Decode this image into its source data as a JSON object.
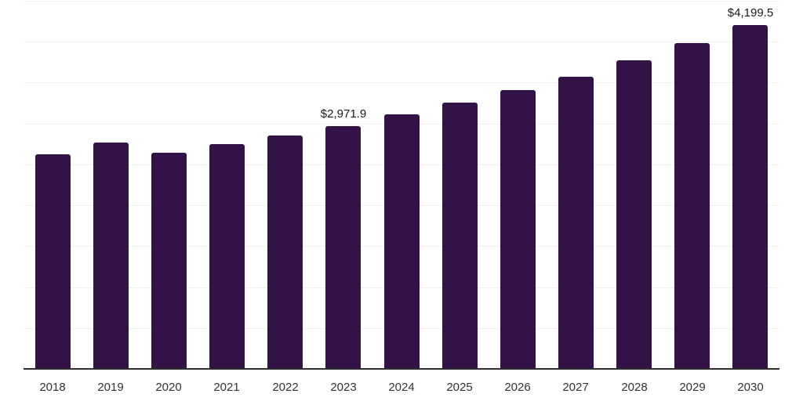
{
  "chart_data": {
    "type": "bar",
    "title": "",
    "categories": [
      "2018",
      "2019",
      "2020",
      "2021",
      "2022",
      "2023",
      "2024",
      "2025",
      "2026",
      "2027",
      "2028",
      "2029",
      "2030"
    ],
    "values": [
      2625,
      2770,
      2640,
      2745,
      2850,
      2971.9,
      3110,
      3255,
      3405,
      3575,
      3770,
      3985,
      4199.5
    ],
    "data_labels": [
      {
        "category": "2023",
        "text": "$2,971.9"
      },
      {
        "category": "2030",
        "text": "$4,199.5"
      }
    ],
    "xlabel": "",
    "ylabel": "",
    "ylim": [
      0,
      4500
    ],
    "gridline_step": 500,
    "grid": true,
    "legend_position": "none",
    "y_axis_tick_labels_visible": false,
    "colors": {
      "bar": "#331247",
      "axis_line": "#2d2d2d",
      "gridline": "#f2f2f2",
      "data_label_text": "#1a1a1a",
      "tick_label_text": "#333333",
      "background": "#ffffff"
    }
  }
}
